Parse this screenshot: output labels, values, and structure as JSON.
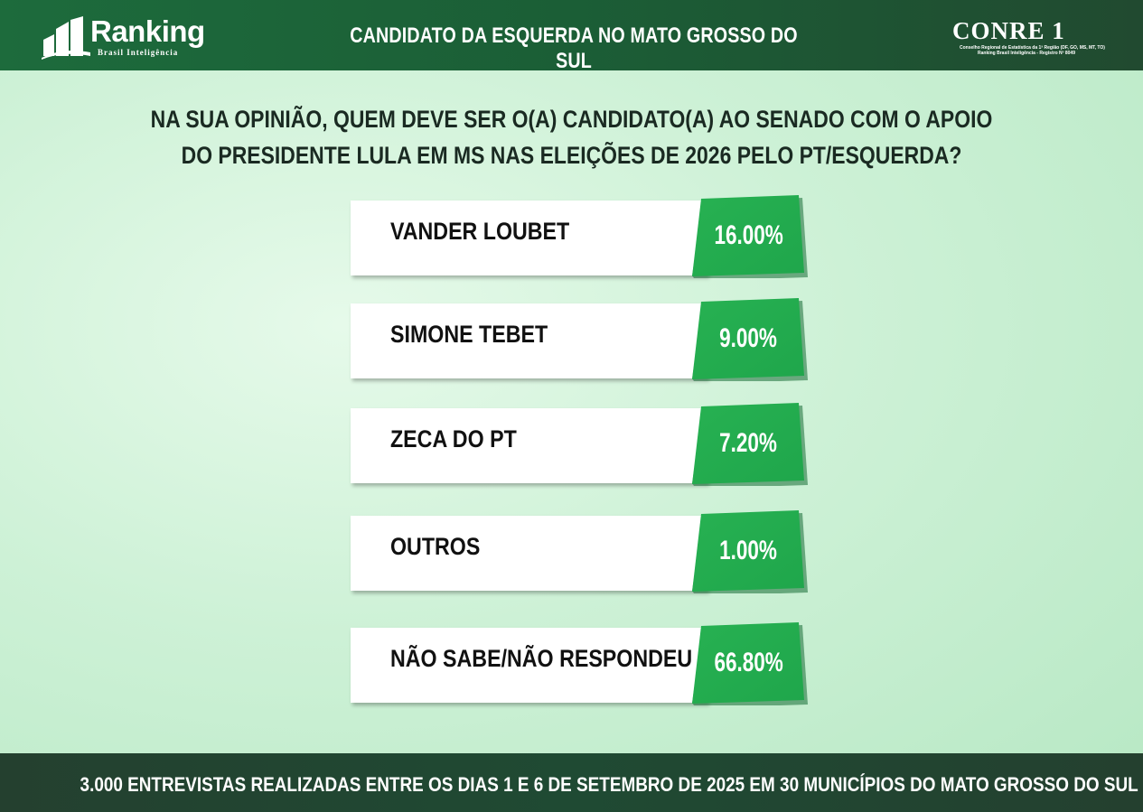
{
  "header": {
    "brand_name": "Ranking",
    "brand_sub": "Brasil Inteligência",
    "title": "CANDIDATO DA ESQUERDA NO MATO GROSSO DO SUL",
    "conre_name": "CONRE 1",
    "conre_sub1": "Conselho Regional de Estatística da 1ª Região (DF, GO, MS, MT, TO)",
    "conre_sub2": "Ranking Brasil Inteligência - Registro Nº 8049"
  },
  "question": "NA SUA OPINIÃO, QUEM DEVE SER O(A) CANDIDATO(A) AO SENADO COM O APOIO DO PRESIDENTE LULA EM MS NAS ELEIÇÕES DE 2026 PELO PT/ESQUERDA?",
  "chart_data": {
    "type": "table",
    "title": "CANDIDATO DA ESQUERDA NO MATO GROSSO DO SUL",
    "categories": [
      "VANDER LOUBET",
      "SIMONE TEBET",
      "ZECA DO PT",
      "OUTROS",
      "NÃO SABE/NÃO RESPONDEU"
    ],
    "value_labels": [
      "16.00%",
      "9.00%",
      "7.20%",
      "1.00%",
      "66.80%"
    ],
    "values": [
      16.0,
      9.0,
      7.2,
      1.0,
      66.8
    ],
    "unit": "%"
  },
  "footer": {
    "text": "3.000 ENTREVISTAS REALIZADAS ENTRE OS DIAS 1 E 6 DE SETEMBRO DE 2025 EM 30 MUNICÍPIOS DO MATO GROSSO DO SUL"
  },
  "colors": {
    "header_green": "#1d6b3c",
    "value_green": "#1fa64b",
    "footer_dark": "#24402f"
  }
}
